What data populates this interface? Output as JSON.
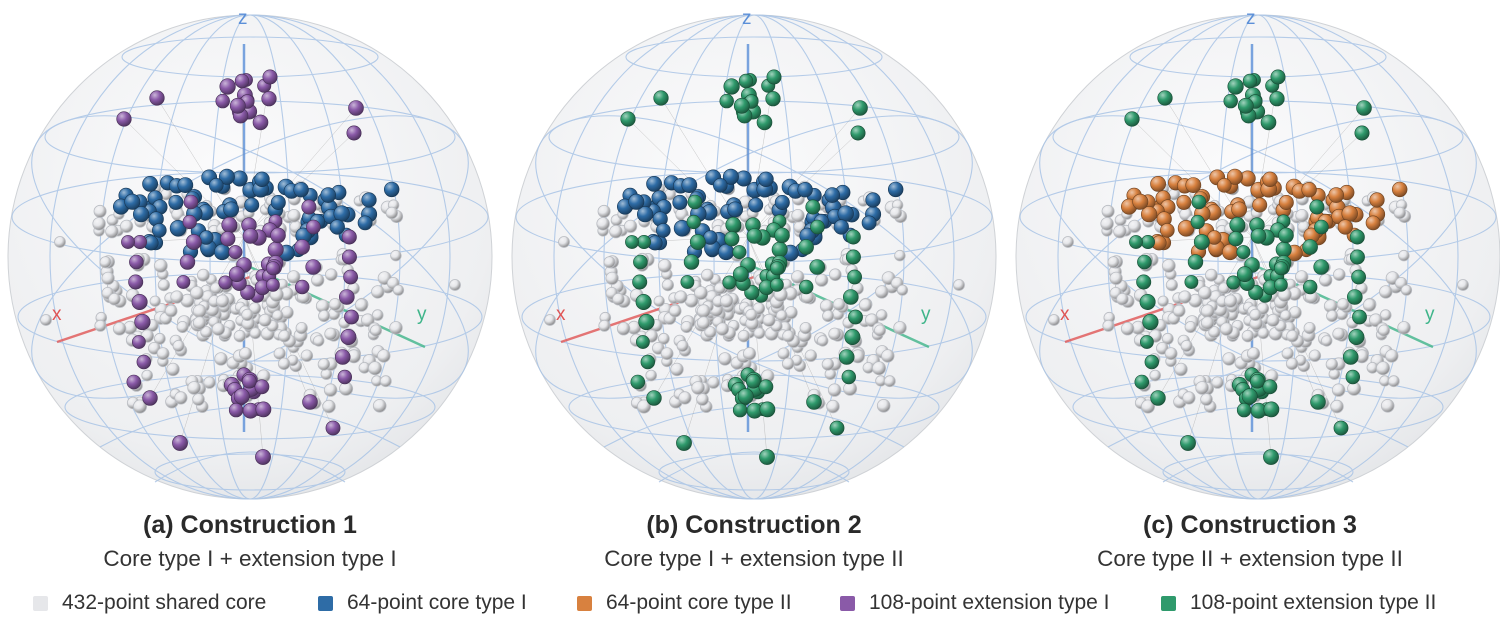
{
  "colors": {
    "shared_core": "#e6e7ea",
    "core_type_i": "#2e6ca6",
    "core_type_ii": "#d8813f",
    "extension_type_i": "#8a5aa8",
    "extension_type_ii": "#2f9a6c",
    "axis_x": "#e05555",
    "axis_y": "#3fb58a",
    "axis_z": "#5b8fd8",
    "wireframe": "#a9c4e6"
  },
  "axis_labels": {
    "x": "x",
    "y": "y",
    "z": "z"
  },
  "panels": [
    {
      "title": "(a) Construction 1",
      "subtitle": "Core type I + extension type I",
      "core_color_key": "core_type_i",
      "extension_color_key": "extension_type_i"
    },
    {
      "title": "(b) Construction 2",
      "subtitle": "Core type I + extension type II",
      "core_color_key": "core_type_i",
      "extension_color_key": "extension_type_ii"
    },
    {
      "title": "(c) Construction 3",
      "subtitle": "Core type II + extension type II",
      "core_color_key": "core_type_ii",
      "extension_color_key": "extension_type_ii"
    }
  ],
  "legend": [
    {
      "label": "432-point shared core",
      "color_key": "shared_core"
    },
    {
      "label": "64-point core type I",
      "color_key": "core_type_i"
    },
    {
      "label": "64-point core type II",
      "color_key": "core_type_ii"
    },
    {
      "label": "108-point extension type I",
      "color_key": "extension_type_i"
    },
    {
      "label": "108-point extension type II",
      "color_key": "extension_type_ii"
    }
  ]
}
